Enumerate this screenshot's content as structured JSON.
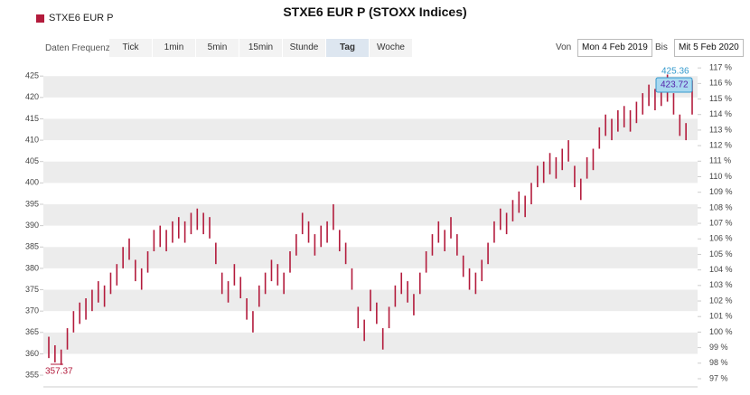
{
  "chart_data": {
    "type": "ohlc",
    "title": "STXE6 EUR P (STOXX Indices)",
    "toolbar": {
      "frequency_label": "Daten Frequenz",
      "buttons": [
        "Tick",
        "1min",
        "5min",
        "15min",
        "Stunde",
        "Tag",
        "Woche"
      ],
      "selected": "Tag",
      "from_label": "Von",
      "from": "Mon 4 Feb 2019",
      "to_label": "Bis",
      "to": "Mit 5 Feb 2020"
    },
    "series": [
      {
        "name": "STXE6 EUR P",
        "color": "#b31b3c",
        "high": [
          364,
          362,
          361,
          366,
          370,
          372,
          373,
          375,
          377,
          376,
          379,
          381,
          385,
          387,
          382,
          380,
          384,
          389,
          390,
          389,
          391,
          392,
          391,
          393,
          394,
          393,
          392,
          386,
          379,
          377,
          381,
          378,
          373,
          370,
          376,
          379,
          382,
          381,
          379,
          384,
          388,
          393,
          391,
          388,
          390,
          391,
          395,
          389,
          386,
          380,
          371,
          368,
          375,
          372,
          366,
          371,
          376,
          379,
          377,
          374,
          379,
          384,
          388,
          391,
          389,
          392,
          388,
          383,
          380,
          379,
          382,
          386,
          391,
          394,
          393,
          396,
          398,
          397,
          400,
          404,
          405,
          407,
          406,
          408,
          410,
          404,
          401,
          406,
          408,
          413,
          416,
          415,
          417,
          418,
          417,
          419,
          421,
          423,
          422,
          423,
          425.36,
          421,
          416,
          414,
          424
        ],
        "low": [
          359,
          358,
          357.37,
          361,
          365,
          367,
          368,
          370,
          372,
          371,
          374,
          376,
          380,
          382,
          377,
          375,
          379,
          384,
          385,
          384,
          386,
          387,
          386,
          388,
          389,
          388,
          387,
          381,
          374,
          372,
          376,
          373,
          368,
          365,
          371,
          374,
          377,
          376,
          374,
          379,
          383,
          388,
          386,
          383,
          385,
          386,
          389,
          384,
          381,
          375,
          366,
          363,
          370,
          367,
          361,
          366,
          371,
          374,
          372,
          369,
          374,
          379,
          383,
          386,
          384,
          387,
          383,
          378,
          375,
          374,
          377,
          381,
          386,
          389,
          388,
          391,
          393,
          392,
          395,
          399,
          400,
          402,
          401,
          403,
          405,
          399,
          396,
          401,
          403,
          408,
          411,
          410,
          412,
          413,
          412,
          414,
          416,
          418,
          417,
          418,
          419,
          416,
          411,
          410,
          416
        ]
      }
    ],
    "annotations": {
      "min": "357.37",
      "max": "425.36",
      "last": "423.72"
    },
    "ylim": [
      352.9,
      428
    ],
    "yticks": [
      355,
      360,
      365,
      370,
      375,
      380,
      385,
      390,
      395,
      400,
      405,
      410,
      415,
      420,
      425
    ],
    "y2lim": [
      96.65,
      117.3
    ],
    "y2ticks": [
      {
        "value": 97,
        "label": "97 %"
      },
      {
        "value": 98,
        "label": "98 %"
      },
      {
        "value": 99,
        "label": "99 %"
      },
      {
        "value": 100,
        "label": "100 %"
      },
      {
        "value": 101,
        "label": "101 %"
      },
      {
        "value": 102,
        "label": "102 %"
      },
      {
        "value": 103,
        "label": "103 %"
      },
      {
        "value": 104,
        "label": "104 %"
      },
      {
        "value": 105,
        "label": "105 %"
      },
      {
        "value": 106,
        "label": "106 %"
      },
      {
        "value": 107,
        "label": "107 %"
      },
      {
        "value": 108,
        "label": "108 %"
      },
      {
        "value": 109,
        "label": "109 %"
      },
      {
        "value": 110,
        "label": "110 %"
      },
      {
        "value": 111,
        "label": "111 %"
      },
      {
        "value": 112,
        "label": "112 %"
      },
      {
        "value": 113,
        "label": "113 %"
      },
      {
        "value": 114,
        "label": "114 %"
      },
      {
        "value": 115,
        "label": "115 %"
      },
      {
        "value": 116,
        "label": "116 %"
      },
      {
        "value": 117,
        "label": "117 %"
      }
    ],
    "grid": "bands"
  }
}
